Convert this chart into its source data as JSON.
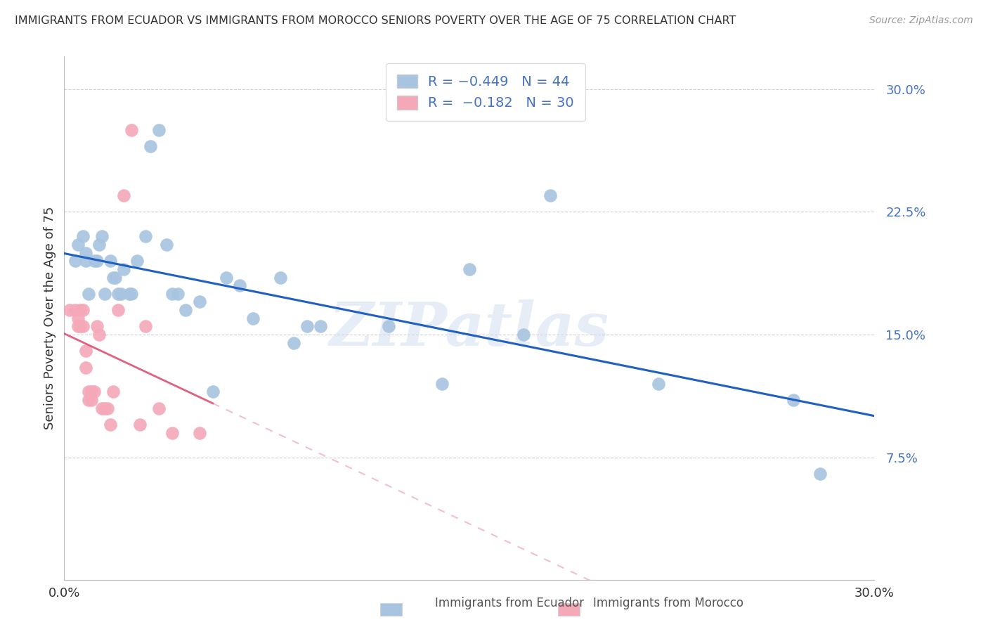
{
  "title": "IMMIGRANTS FROM ECUADOR VS IMMIGRANTS FROM MOROCCO SENIORS POVERTY OVER THE AGE OF 75 CORRELATION CHART",
  "source": "Source: ZipAtlas.com",
  "ylabel_label": "Seniors Poverty Over the Age of 75",
  "ylabel_ticks": [
    0.0,
    0.075,
    0.15,
    0.225,
    0.3
  ],
  "ylabel_tick_labels": [
    "",
    "7.5%",
    "15.0%",
    "22.5%",
    "30.0%"
  ],
  "xlim": [
    0.0,
    0.3
  ],
  "ylim": [
    0.0,
    0.32
  ],
  "ecuador_R": -0.449,
  "ecuador_N": 44,
  "morocco_R": -0.182,
  "morocco_N": 30,
  "ecuador_color": "#a8c4e0",
  "morocco_color": "#f4a8b8",
  "ecuador_line_color": "#2060c0",
  "morocco_line_color": "#e06080",
  "watermark": "ZIPatlas",
  "ecuador_x": [
    0.004,
    0.005,
    0.007,
    0.008,
    0.008,
    0.009,
    0.011,
    0.012,
    0.013,
    0.014,
    0.015,
    0.017,
    0.018,
    0.019,
    0.02,
    0.021,
    0.022,
    0.024,
    0.025,
    0.027,
    0.03,
    0.032,
    0.035,
    0.038,
    0.04,
    0.042,
    0.045,
    0.05,
    0.055,
    0.06,
    0.065,
    0.07,
    0.08,
    0.085,
    0.09,
    0.095,
    0.12,
    0.14,
    0.15,
    0.17,
    0.18,
    0.22,
    0.27,
    0.28
  ],
  "ecuador_y": [
    0.195,
    0.205,
    0.21,
    0.2,
    0.195,
    0.175,
    0.195,
    0.195,
    0.205,
    0.21,
    0.175,
    0.195,
    0.185,
    0.185,
    0.175,
    0.175,
    0.19,
    0.175,
    0.175,
    0.195,
    0.21,
    0.265,
    0.275,
    0.205,
    0.175,
    0.175,
    0.165,
    0.17,
    0.115,
    0.185,
    0.18,
    0.16,
    0.185,
    0.145,
    0.155,
    0.155,
    0.155,
    0.12,
    0.19,
    0.15,
    0.235,
    0.12,
    0.11,
    0.065
  ],
  "morocco_x": [
    0.002,
    0.004,
    0.005,
    0.005,
    0.006,
    0.006,
    0.007,
    0.007,
    0.008,
    0.008,
    0.009,
    0.009,
    0.01,
    0.01,
    0.011,
    0.012,
    0.013,
    0.014,
    0.015,
    0.016,
    0.017,
    0.018,
    0.02,
    0.022,
    0.025,
    0.028,
    0.03,
    0.035,
    0.04,
    0.05
  ],
  "morocco_y": [
    0.165,
    0.165,
    0.155,
    0.16,
    0.155,
    0.165,
    0.155,
    0.165,
    0.13,
    0.14,
    0.11,
    0.115,
    0.115,
    0.11,
    0.115,
    0.155,
    0.15,
    0.105,
    0.105,
    0.105,
    0.095,
    0.115,
    0.165,
    0.235,
    0.275,
    0.095,
    0.155,
    0.105,
    0.09,
    0.09
  ],
  "background_color": "#ffffff",
  "grid_color": "#d0d0d0",
  "morocco_line_x_solid_end": 0.055,
  "morocco_line_x_end": 0.3
}
